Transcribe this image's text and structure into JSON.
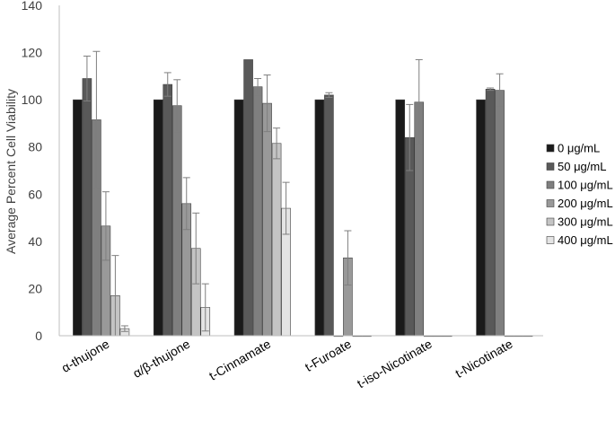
{
  "chart_data": {
    "type": "bar",
    "ylabel": "Average Percent Cell Viability",
    "xlabel": "",
    "ylim": [
      0,
      140
    ],
    "yticks": [
      "0",
      "20",
      "40",
      "60",
      "80",
      "100",
      "120",
      "140"
    ],
    "legend_position": "right",
    "categories": [
      "α-thujone",
      "α/β-thujone",
      "t-Cinnamate",
      "t-Furoate",
      "t-iso-Nicotinate",
      "t-Nicotinate"
    ],
    "series": [
      {
        "name": "0 μg/mL",
        "color": "#1a1a1a",
        "values": [
          100,
          100,
          100,
          100,
          100,
          100
        ],
        "errors": [
          0,
          0,
          0,
          0,
          0,
          0
        ]
      },
      {
        "name": "50 μg/mL",
        "color": "#595959",
        "values": [
          109,
          106.5,
          117,
          102,
          84,
          104.5
        ],
        "errors": [
          9.5,
          5,
          0,
          1,
          14,
          0.5
        ]
      },
      {
        "name": "100 μg/mL",
        "color": "#7f7f7f",
        "values": [
          91.5,
          97.5,
          105.5,
          0,
          99,
          104
        ],
        "errors": [
          29,
          11,
          3.5,
          0,
          18,
          7
        ]
      },
      {
        "name": "200 μg/mL",
        "color": "#999999",
        "values": [
          46.5,
          56,
          98.5,
          33,
          0,
          0
        ],
        "errors": [
          14.5,
          11,
          12,
          11.5,
          0,
          0
        ]
      },
      {
        "name": "300 μg/mL",
        "color": "#c4c4c4",
        "values": [
          17,
          37,
          81.5,
          0,
          0,
          0
        ],
        "errors": [
          17,
          15,
          6.5,
          0,
          0,
          0
        ]
      },
      {
        "name": "400 μg/mL",
        "color": "#e4e4e4",
        "values": [
          3,
          12,
          54,
          0,
          0,
          0
        ],
        "errors": [
          1.2,
          10,
          11,
          0,
          0,
          0
        ]
      }
    ],
    "grid": false
  }
}
